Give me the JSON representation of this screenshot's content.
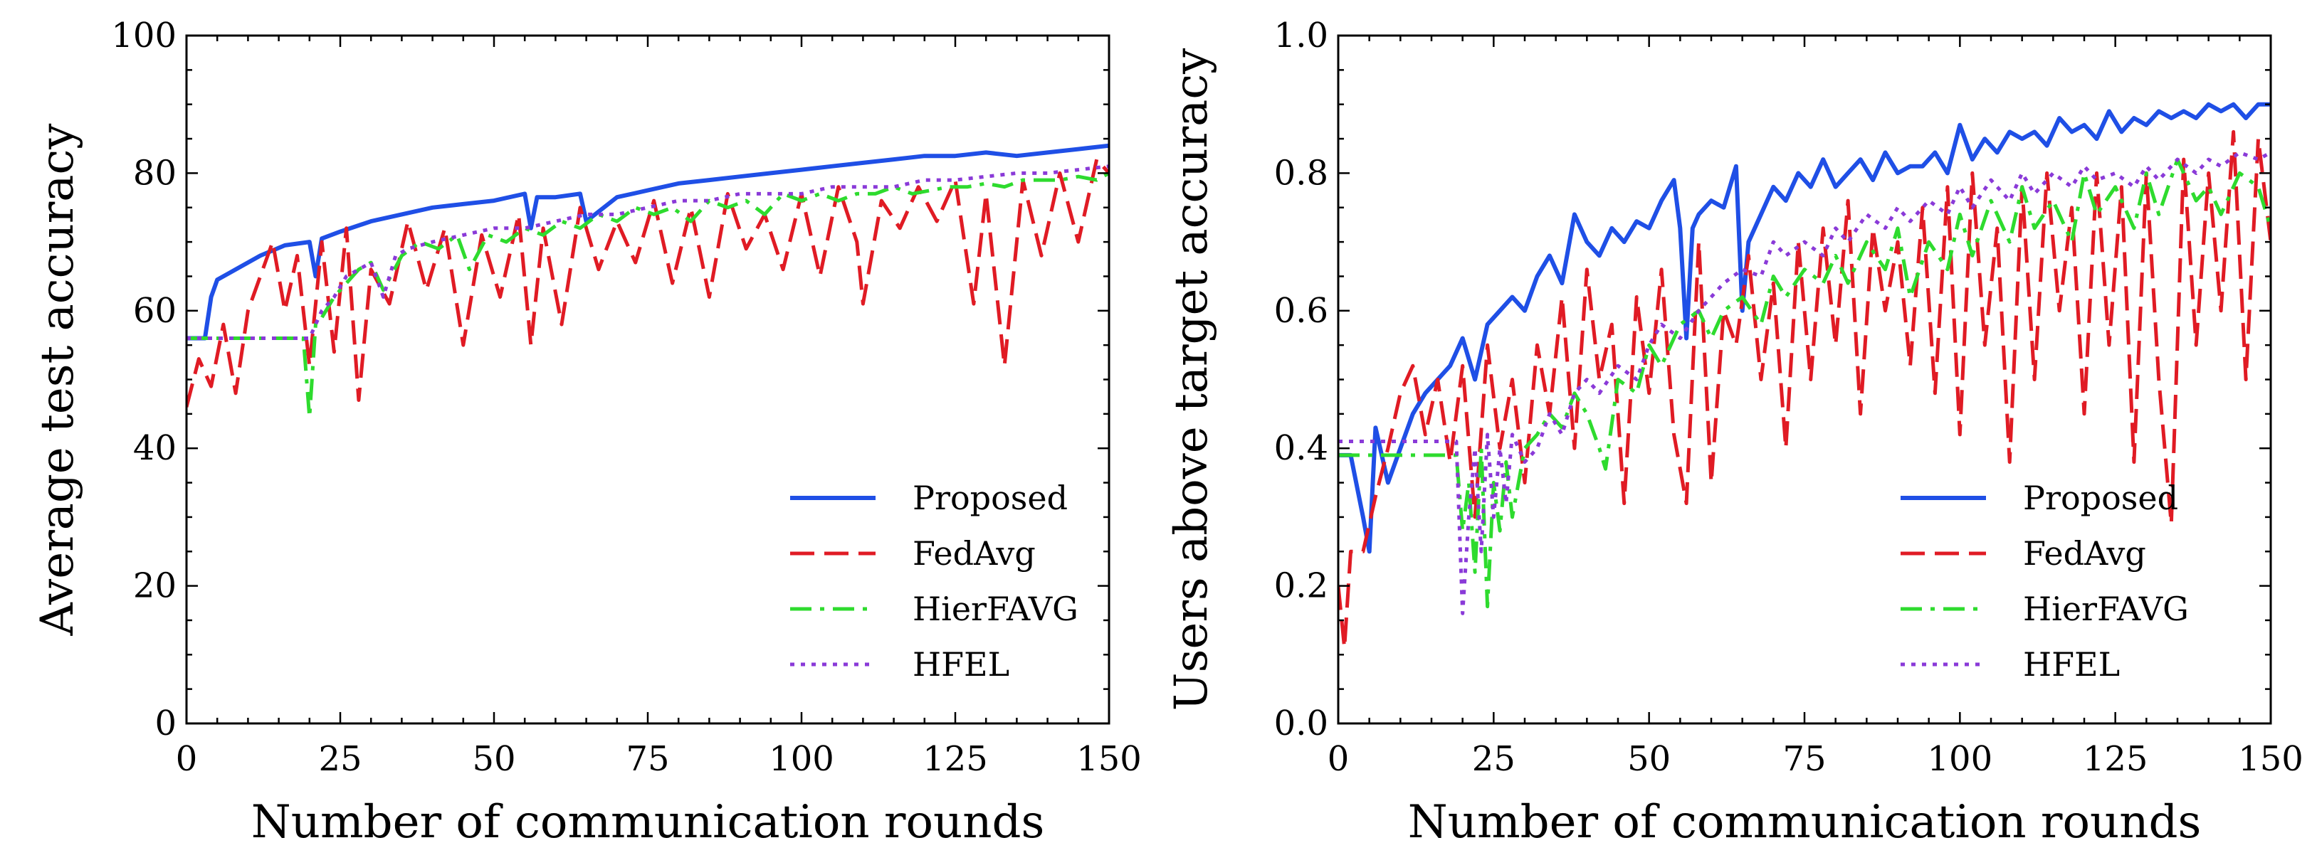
{
  "chart_data": [
    {
      "type": "line",
      "xlabel": "Number of communication rounds",
      "ylabel": "Average test accuracy",
      "xlim": [
        0,
        150
      ],
      "ylim": [
        0,
        100
      ],
      "xticks": [
        0,
        25,
        50,
        75,
        100,
        125,
        150
      ],
      "yticks": [
        0,
        20,
        40,
        60,
        80,
        100
      ],
      "legend_position": "bottom-right",
      "series": [
        {
          "name": "Proposed",
          "color": "#1f4fe6",
          "style": "solid",
          "x": [
            0,
            3,
            4,
            5,
            8,
            12,
            16,
            20,
            21,
            22,
            25,
            30,
            35,
            40,
            45,
            50,
            55,
            56,
            57,
            60,
            64,
            65,
            70,
            75,
            80,
            85,
            90,
            95,
            100,
            105,
            110,
            115,
            120,
            125,
            130,
            135,
            140,
            145,
            150
          ],
          "y": [
            56,
            56,
            62,
            64.5,
            66,
            68,
            69.5,
            70,
            65,
            70.5,
            71.5,
            73,
            74,
            75,
            75.5,
            76,
            77,
            72,
            76.5,
            76.5,
            77,
            73,
            76.5,
            77.5,
            78.5,
            79,
            79.5,
            80,
            80.5,
            81,
            81.5,
            82,
            82.5,
            82.5,
            83,
            82.5,
            83,
            83.5,
            84
          ]
        },
        {
          "name": "FedAvg",
          "color": "#e01b24",
          "style": "dashed",
          "x": [
            0,
            2,
            4,
            6,
            8,
            10,
            12,
            14,
            16,
            18,
            20,
            22,
            24,
            26,
            28,
            30,
            33,
            36,
            39,
            42,
            45,
            48,
            51,
            54,
            56,
            58,
            61,
            64,
            67,
            70,
            73,
            76,
            79,
            82,
            85,
            88,
            91,
            94,
            97,
            100,
            103,
            106,
            109,
            110,
            113,
            116,
            119,
            122,
            125,
            128,
            130,
            133,
            136,
            139,
            142,
            145,
            148,
            150
          ],
          "y": [
            46,
            53,
            49,
            58,
            48,
            60,
            65,
            70,
            60,
            68,
            52,
            70,
            54,
            72,
            47,
            66,
            61,
            73,
            63,
            72,
            55,
            71,
            62,
            74,
            55,
            72,
            58,
            75,
            66,
            73,
            67,
            76,
            64,
            75,
            62,
            77,
            69,
            74,
            66,
            77,
            65,
            78,
            70,
            61,
            76,
            72,
            78,
            73,
            79,
            61,
            77,
            52,
            79,
            68,
            80,
            70,
            82,
            80
          ]
        },
        {
          "name": "HierFAVG",
          "color": "#2edb2e",
          "style": "dashdot",
          "x": [
            0,
            5,
            10,
            15,
            19,
            20,
            21,
            22,
            24,
            26,
            28,
            30,
            32,
            35,
            38,
            41,
            44,
            46,
            49,
            52,
            55,
            58,
            61,
            64,
            67,
            70,
            73,
            76,
            79,
            82,
            85,
            88,
            91,
            94,
            97,
            100,
            103,
            106,
            109,
            112,
            115,
            118,
            121,
            124,
            127,
            130,
            133,
            136,
            139,
            142,
            145,
            148,
            150
          ],
          "y": [
            56,
            56,
            56,
            56,
            56,
            44.5,
            58,
            59,
            62,
            64,
            66,
            67,
            63,
            68,
            70,
            69,
            71,
            66,
            71,
            70,
            72,
            71,
            73,
            72,
            74,
            73,
            75,
            74,
            75,
            73,
            76,
            75,
            76,
            74,
            77,
            76,
            77,
            76,
            77,
            77,
            78,
            77,
            77.5,
            78,
            78,
            78.5,
            78,
            79,
            79,
            79,
            79.5,
            79,
            80
          ]
        },
        {
          "name": "HFEL",
          "color": "#8a3ad8",
          "style": "dotted",
          "x": [
            0,
            5,
            10,
            15,
            19,
            20,
            21,
            22,
            24,
            26,
            28,
            30,
            32,
            34,
            36,
            40,
            45,
            50,
            55,
            60,
            65,
            70,
            75,
            80,
            85,
            90,
            95,
            100,
            105,
            110,
            115,
            120,
            125,
            130,
            135,
            140,
            145,
            150
          ],
          "y": [
            56,
            56,
            56,
            56,
            56,
            56,
            58,
            60,
            62,
            65,
            66,
            67,
            62,
            68,
            69,
            70,
            71,
            72,
            72,
            73,
            74,
            74,
            75,
            76,
            76,
            77,
            77,
            77,
            78,
            78,
            78,
            79,
            79,
            79.5,
            80,
            80,
            80.5,
            81
          ]
        }
      ]
    },
    {
      "type": "line",
      "xlabel": "Number of communication rounds",
      "ylabel": "Users above target accuracy",
      "xlim": [
        0,
        150
      ],
      "ylim": [
        0.0,
        1.0
      ],
      "xticks": [
        0,
        25,
        50,
        75,
        100,
        125,
        150
      ],
      "yticks": [
        0.0,
        0.2,
        0.4,
        0.6,
        0.8,
        1.0
      ],
      "legend_position": "bottom-right",
      "series": [
        {
          "name": "Proposed",
          "color": "#1f4fe6",
          "style": "solid",
          "x": [
            0,
            2,
            4,
            5,
            6,
            8,
            10,
            12,
            14,
            16,
            18,
            20,
            22,
            24,
            26,
            28,
            30,
            32,
            34,
            36,
            38,
            40,
            42,
            44,
            46,
            48,
            50,
            52,
            54,
            55,
            56,
            57,
            58,
            60,
            62,
            64,
            65,
            66,
            68,
            70,
            72,
            74,
            76,
            78,
            80,
            82,
            84,
            86,
            88,
            90,
            92,
            94,
            96,
            98,
            100,
            102,
            104,
            106,
            108,
            110,
            112,
            114,
            116,
            118,
            120,
            122,
            124,
            126,
            128,
            130,
            132,
            134,
            136,
            138,
            140,
            142,
            144,
            146,
            148,
            150
          ],
          "y": [
            0.39,
            0.39,
            0.3,
            0.25,
            0.43,
            0.35,
            0.4,
            0.45,
            0.48,
            0.5,
            0.52,
            0.56,
            0.5,
            0.58,
            0.6,
            0.62,
            0.6,
            0.65,
            0.68,
            0.64,
            0.74,
            0.7,
            0.68,
            0.72,
            0.7,
            0.73,
            0.72,
            0.76,
            0.79,
            0.72,
            0.56,
            0.72,
            0.74,
            0.76,
            0.75,
            0.81,
            0.6,
            0.7,
            0.74,
            0.78,
            0.76,
            0.8,
            0.78,
            0.82,
            0.78,
            0.8,
            0.82,
            0.79,
            0.83,
            0.8,
            0.81,
            0.81,
            0.83,
            0.8,
            0.87,
            0.82,
            0.85,
            0.83,
            0.86,
            0.85,
            0.86,
            0.84,
            0.88,
            0.86,
            0.87,
            0.85,
            0.89,
            0.86,
            0.88,
            0.87,
            0.89,
            0.88,
            0.89,
            0.88,
            0.9,
            0.89,
            0.9,
            0.88,
            0.9,
            0.9
          ]
        },
        {
          "name": "FedAvg",
          "color": "#e01b24",
          "style": "dashed",
          "x": [
            0,
            1,
            2,
            4,
            6,
            8,
            10,
            12,
            14,
            16,
            18,
            20,
            22,
            24,
            26,
            28,
            30,
            32,
            34,
            36,
            38,
            40,
            42,
            44,
            46,
            48,
            50,
            52,
            54,
            56,
            58,
            60,
            62,
            64,
            66,
            68,
            70,
            72,
            74,
            76,
            78,
            80,
            82,
            84,
            86,
            88,
            90,
            92,
            94,
            96,
            98,
            100,
            102,
            104,
            106,
            108,
            110,
            112,
            114,
            116,
            118,
            120,
            122,
            124,
            126,
            128,
            130,
            132,
            134,
            136,
            138,
            140,
            142,
            144,
            146,
            148,
            150
          ],
          "y": [
            0.2,
            0.11,
            0.25,
            0.25,
            0.33,
            0.4,
            0.48,
            0.52,
            0.42,
            0.5,
            0.38,
            0.52,
            0.3,
            0.55,
            0.4,
            0.5,
            0.35,
            0.55,
            0.45,
            0.62,
            0.4,
            0.66,
            0.5,
            0.58,
            0.32,
            0.62,
            0.48,
            0.66,
            0.42,
            0.32,
            0.7,
            0.35,
            0.6,
            0.55,
            0.68,
            0.5,
            0.64,
            0.4,
            0.7,
            0.5,
            0.72,
            0.55,
            0.76,
            0.45,
            0.72,
            0.6,
            0.7,
            0.52,
            0.75,
            0.48,
            0.78,
            0.42,
            0.8,
            0.55,
            0.72,
            0.38,
            0.78,
            0.5,
            0.8,
            0.6,
            0.75,
            0.45,
            0.8,
            0.55,
            0.78,
            0.38,
            0.8,
            0.5,
            0.29,
            0.82,
            0.55,
            0.8,
            0.6,
            0.86,
            0.5,
            0.85,
            0.7
          ]
        },
        {
          "name": "HierFAVG",
          "color": "#2edb2e",
          "style": "dashdot",
          "x": [
            0,
            5,
            10,
            15,
            19,
            20,
            21,
            22,
            23,
            24,
            25,
            26,
            27,
            28,
            30,
            32,
            34,
            36,
            38,
            40,
            42,
            43,
            45,
            48,
            50,
            52,
            55,
            58,
            60,
            62,
            65,
            68,
            70,
            72,
            75,
            78,
            80,
            82,
            85,
            88,
            90,
            92,
            95,
            98,
            100,
            102,
            105,
            108,
            110,
            112,
            115,
            118,
            120,
            122,
            125,
            128,
            130,
            132,
            135,
            138,
            140,
            142,
            145,
            148,
            150
          ],
          "y": [
            0.39,
            0.39,
            0.39,
            0.39,
            0.39,
            0.28,
            0.35,
            0.22,
            0.4,
            0.17,
            0.35,
            0.28,
            0.38,
            0.3,
            0.4,
            0.42,
            0.45,
            0.43,
            0.48,
            0.45,
            0.4,
            0.37,
            0.5,
            0.48,
            0.55,
            0.52,
            0.58,
            0.6,
            0.56,
            0.6,
            0.62,
            0.58,
            0.65,
            0.62,
            0.66,
            0.64,
            0.68,
            0.64,
            0.7,
            0.66,
            0.72,
            0.62,
            0.7,
            0.66,
            0.74,
            0.68,
            0.76,
            0.7,
            0.78,
            0.72,
            0.76,
            0.7,
            0.8,
            0.74,
            0.78,
            0.72,
            0.8,
            0.74,
            0.82,
            0.76,
            0.78,
            0.74,
            0.8,
            0.78,
            0.72
          ]
        },
        {
          "name": "HFEL",
          "color": "#8a3ad8",
          "style": "dotted",
          "x": [
            0,
            5,
            10,
            15,
            19,
            20,
            21,
            22,
            23,
            24,
            25,
            26,
            27,
            28,
            30,
            32,
            34,
            36,
            38,
            40,
            42,
            45,
            48,
            50,
            52,
            55,
            58,
            60,
            62,
            65,
            68,
            70,
            72,
            75,
            78,
            80,
            82,
            85,
            88,
            90,
            92,
            95,
            98,
            100,
            102,
            105,
            108,
            110,
            112,
            115,
            118,
            120,
            122,
            125,
            128,
            130,
            132,
            135,
            138,
            140,
            142,
            145,
            148,
            150
          ],
          "y": [
            0.41,
            0.41,
            0.41,
            0.41,
            0.41,
            0.16,
            0.3,
            0.4,
            0.25,
            0.42,
            0.3,
            0.4,
            0.32,
            0.42,
            0.38,
            0.4,
            0.45,
            0.42,
            0.48,
            0.5,
            0.48,
            0.52,
            0.5,
            0.55,
            0.58,
            0.56,
            0.6,
            0.62,
            0.64,
            0.66,
            0.65,
            0.7,
            0.68,
            0.7,
            0.68,
            0.72,
            0.7,
            0.74,
            0.72,
            0.75,
            0.73,
            0.76,
            0.74,
            0.78,
            0.75,
            0.79,
            0.76,
            0.8,
            0.77,
            0.8,
            0.78,
            0.81,
            0.79,
            0.8,
            0.78,
            0.81,
            0.79,
            0.82,
            0.8,
            0.82,
            0.81,
            0.83,
            0.82,
            0.83
          ]
        }
      ]
    }
  ]
}
